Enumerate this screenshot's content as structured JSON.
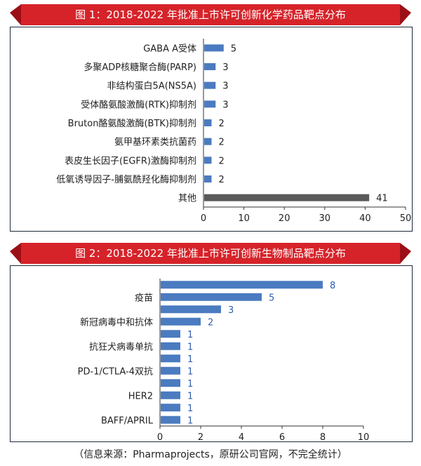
{
  "colors": {
    "banner": "#d6232a",
    "banner_dark": "#9b1016",
    "bar_blue": "#4b7bc0",
    "bar_gray": "#5a5a5a",
    "label_blue": "#2f5fae"
  },
  "chart1": {
    "title": "图 1：2018-2022 年批准上市许可创新化学药品靶点分布"
  },
  "chart2": {
    "title": "图 2：2018-2022 年批准上市许可创新生物制品靶点分布"
  },
  "source": "（信息来源：Pharmaprojects，原研公司官网，不完全统计）",
  "chart_data": [
    {
      "type": "bar",
      "orientation": "horizontal",
      "title": "图 1：2018-2022 年批准上市许可创新化学药品靶点分布",
      "categories": [
        "GABA A受体",
        "多聚ADP核糖聚合酶(PARP)",
        "非结构蛋白5A(NS5A)",
        "受体酪氨酸激酶(RTK)抑制剂",
        "Bruton酪氨酸激酶(BTK)抑制剂",
        "氨甲基环素类抗菌药",
        "表皮生长因子(EGFR)激酶抑制剂",
        "低氧诱导因子-脯氨酰羟化酶抑制剂",
        "其他"
      ],
      "values": [
        5,
        3,
        3,
        3,
        2,
        2,
        2,
        2,
        41
      ],
      "xlim": [
        0,
        50
      ],
      "xticks": [
        "0",
        "10",
        "20",
        "30",
        "40",
        "50"
      ],
      "data_labels": true,
      "grid": false
    },
    {
      "type": "bar",
      "orientation": "horizontal",
      "title": "图 2：2018-2022 年批准上市许可创新生物制品靶点分布",
      "categories": [
        "",
        "疫苗",
        "",
        "新冠病毒中和抗体",
        "",
        "抗狂犬病毒单抗",
        "",
        "PD-1/CTLA-4双抗",
        "",
        "HER2",
        "",
        "BAFF/APRIL"
      ],
      "values": [
        8,
        5,
        3,
        2,
        1,
        1,
        1,
        1,
        1,
        1,
        1,
        1
      ],
      "xlim": [
        0,
        10
      ],
      "xticks": [
        "0",
        "2",
        "4",
        "6",
        "8",
        "10"
      ],
      "data_labels": true,
      "grid": false
    }
  ]
}
